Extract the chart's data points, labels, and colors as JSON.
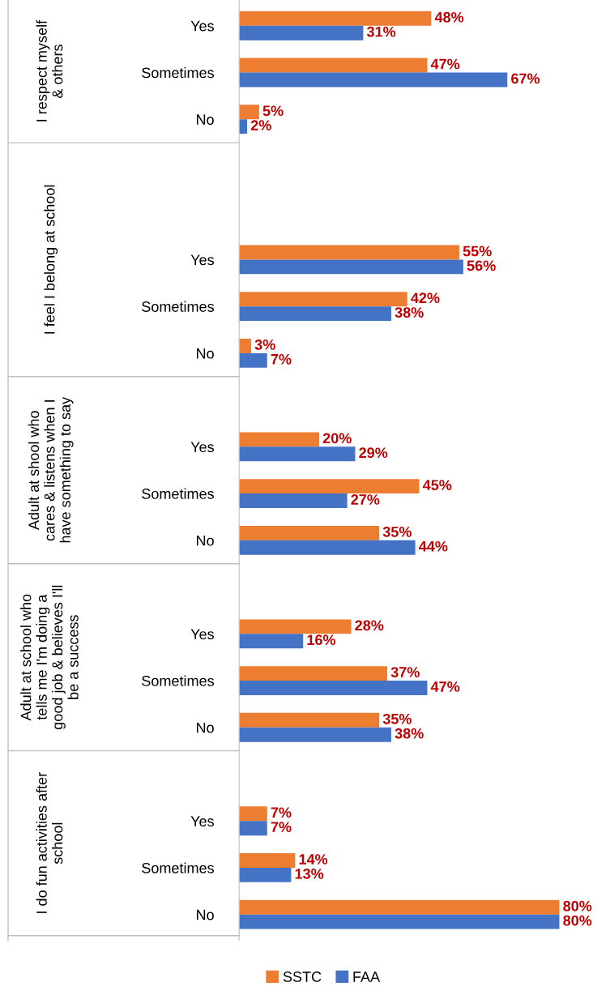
{
  "chart_data": {
    "type": "bar",
    "orientation": "horizontal",
    "legend": "bottom",
    "grid": false,
    "categories": [
      "Yes",
      "Sometimes",
      "No",
      null,
      null,
      "Yes",
      "Sometimes",
      "No",
      null,
      "Yes",
      "Sometimes",
      "No",
      null,
      "Yes",
      "Sometimes",
      "No",
      null,
      "Yes",
      "Sometimes",
      "No"
    ],
    "series": [
      {
        "name": "SSTC",
        "color": "#ed7d31",
        "values": [
          48,
          47,
          5,
          null,
          null,
          55,
          42,
          3,
          null,
          20,
          45,
          35,
          null,
          28,
          37,
          35,
          null,
          7,
          14,
          80
        ],
        "value_labels": [
          "48%",
          "47%",
          "5%",
          null,
          null,
          "55%",
          "42%",
          "3%",
          null,
          "20%",
          "45%",
          "35%",
          null,
          "28%",
          "37%",
          "35%",
          null,
          "7%",
          "14%",
          "80%"
        ]
      },
      {
        "name": "FAA",
        "color": "#4472c4",
        "values": [
          31,
          67,
          2,
          null,
          null,
          56,
          38,
          7,
          null,
          29,
          27,
          44,
          null,
          16,
          47,
          38,
          null,
          7,
          13,
          80
        ],
        "value_labels": [
          "31%",
          "67%",
          "2%",
          null,
          null,
          "56%",
          "38%",
          "7%",
          null,
          "29%",
          "27%",
          "44%",
          null,
          "16%",
          "47%",
          "38%",
          null,
          "7%",
          "13%",
          "80%"
        ]
      }
    ],
    "annotations": [
      "I respect myself\n& others",
      "I feel I belong at school",
      "Adult at shool who\ncares & listens when I\nhave something to say",
      "Adult at school who\ntells me I'm doing a\ngood job & believes I'll\nbe a success",
      "I do fun activities after\nschool"
    ]
  }
}
